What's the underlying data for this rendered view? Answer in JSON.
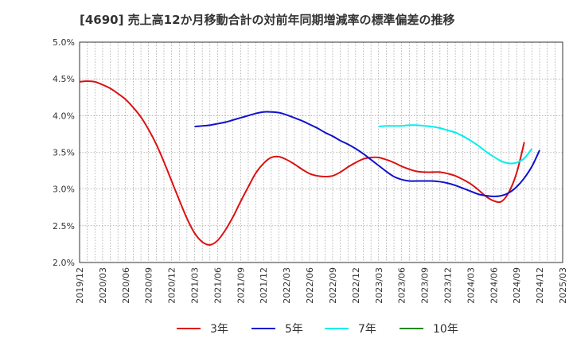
{
  "chart_data": {
    "type": "line",
    "title": "[4690]  売上高12か月移動合計の対前年同期増減率の標準偏差の推移",
    "xlabel": "",
    "ylabel": "",
    "ylim": [
      2.0,
      5.0
    ],
    "yticks": [
      2.0,
      2.5,
      3.0,
      3.5,
      4.0,
      4.5,
      5.0
    ],
    "ytick_labels": [
      "2.0%",
      "2.5%",
      "3.0%",
      "3.5%",
      "4.0%",
      "4.5%",
      "5.0%"
    ],
    "xlim": [
      "2019/12",
      "2025/03"
    ],
    "xtick_labels": [
      "2019/12",
      "2020/03",
      "2020/06",
      "2020/09",
      "2020/12",
      "2021/03",
      "2021/06",
      "2021/09",
      "2021/12",
      "2022/03",
      "2022/06",
      "2022/09",
      "2022/12",
      "2023/03",
      "2023/06",
      "2023/09",
      "2023/12",
      "2024/03",
      "2024/06",
      "2024/09",
      "2024/12",
      "2025/03"
    ],
    "grid": true,
    "legend_position": "bottom",
    "series": [
      {
        "name": "3年",
        "color": "#dd1111",
        "points": [
          [
            "2019/12",
            4.46
          ],
          [
            "2020/01",
            4.47
          ],
          [
            "2020/02",
            4.46
          ],
          [
            "2020/03",
            4.42
          ],
          [
            "2020/04",
            4.37
          ],
          [
            "2020/05",
            4.3
          ],
          [
            "2020/06",
            4.22
          ],
          [
            "2020/07",
            4.11
          ],
          [
            "2020/08",
            3.98
          ],
          [
            "2020/09",
            3.81
          ],
          [
            "2020/10",
            3.61
          ],
          [
            "2020/11",
            3.37
          ],
          [
            "2020/12",
            3.11
          ],
          [
            "2021/01",
            2.85
          ],
          [
            "2021/02",
            2.6
          ],
          [
            "2021/03",
            2.4
          ],
          [
            "2021/04",
            2.28
          ],
          [
            "2021/05",
            2.24
          ],
          [
            "2021/06",
            2.3
          ],
          [
            "2021/07",
            2.44
          ],
          [
            "2021/08",
            2.62
          ],
          [
            "2021/09",
            2.83
          ],
          [
            "2021/10",
            3.03
          ],
          [
            "2021/11",
            3.22
          ],
          [
            "2021/12",
            3.35
          ],
          [
            "2022/01",
            3.43
          ],
          [
            "2022/02",
            3.44
          ],
          [
            "2022/03",
            3.4
          ],
          [
            "2022/04",
            3.34
          ],
          [
            "2022/05",
            3.27
          ],
          [
            "2022/06",
            3.21
          ],
          [
            "2022/07",
            3.18
          ],
          [
            "2022/08",
            3.17
          ],
          [
            "2022/09",
            3.18
          ],
          [
            "2022/10",
            3.23
          ],
          [
            "2022/11",
            3.3
          ],
          [
            "2022/12",
            3.36
          ],
          [
            "2023/01",
            3.41
          ],
          [
            "2023/02",
            3.43
          ],
          [
            "2023/03",
            3.43
          ],
          [
            "2023/04",
            3.4
          ],
          [
            "2023/05",
            3.36
          ],
          [
            "2023/06",
            3.31
          ],
          [
            "2023/07",
            3.27
          ],
          [
            "2023/08",
            3.24
          ],
          [
            "2023/09",
            3.23
          ],
          [
            "2023/10",
            3.23
          ],
          [
            "2023/11",
            3.23
          ],
          [
            "2023/12",
            3.21
          ],
          [
            "2024/01",
            3.18
          ],
          [
            "2024/02",
            3.13
          ],
          [
            "2024/03",
            3.07
          ],
          [
            "2024/04",
            2.99
          ],
          [
            "2024/05",
            2.9
          ],
          [
            "2024/06",
            2.84
          ],
          [
            "2024/07",
            2.83
          ],
          [
            "2024/08",
            2.96
          ],
          [
            "2024/09",
            3.22
          ],
          [
            "2024/10",
            3.64
          ]
        ]
      },
      {
        "name": "5年",
        "color": "#1111cc",
        "points": [
          [
            "2021/03",
            3.85
          ],
          [
            "2021/04",
            3.86
          ],
          [
            "2021/05",
            3.87
          ],
          [
            "2021/06",
            3.89
          ],
          [
            "2021/07",
            3.91
          ],
          [
            "2021/08",
            3.94
          ],
          [
            "2021/09",
            3.97
          ],
          [
            "2021/10",
            4.0
          ],
          [
            "2021/11",
            4.03
          ],
          [
            "2021/12",
            4.05
          ],
          [
            "2022/01",
            4.05
          ],
          [
            "2022/02",
            4.04
          ],
          [
            "2022/03",
            4.01
          ],
          [
            "2022/04",
            3.97
          ],
          [
            "2022/05",
            3.93
          ],
          [
            "2022/06",
            3.88
          ],
          [
            "2022/07",
            3.83
          ],
          [
            "2022/08",
            3.77
          ],
          [
            "2022/09",
            3.72
          ],
          [
            "2022/10",
            3.66
          ],
          [
            "2022/11",
            3.61
          ],
          [
            "2022/12",
            3.55
          ],
          [
            "2023/01",
            3.48
          ],
          [
            "2023/02",
            3.4
          ],
          [
            "2023/03",
            3.32
          ],
          [
            "2023/04",
            3.24
          ],
          [
            "2023/05",
            3.17
          ],
          [
            "2023/06",
            3.13
          ],
          [
            "2023/07",
            3.11
          ],
          [
            "2023/08",
            3.11
          ],
          [
            "2023/09",
            3.11
          ],
          [
            "2023/10",
            3.11
          ],
          [
            "2023/11",
            3.1
          ],
          [
            "2023/12",
            3.08
          ],
          [
            "2024/01",
            3.05
          ],
          [
            "2024/02",
            3.01
          ],
          [
            "2024/03",
            2.97
          ],
          [
            "2024/04",
            2.93
          ],
          [
            "2024/05",
            2.91
          ],
          [
            "2024/06",
            2.9
          ],
          [
            "2024/07",
            2.91
          ],
          [
            "2024/08",
            2.95
          ],
          [
            "2024/09",
            3.03
          ],
          [
            "2024/10",
            3.15
          ],
          [
            "2024/11",
            3.31
          ],
          [
            "2024/12",
            3.53
          ]
        ]
      },
      {
        "name": "7年",
        "color": "#00eeee",
        "points": [
          [
            "2023/03",
            3.85
          ],
          [
            "2023/04",
            3.86
          ],
          [
            "2023/05",
            3.86
          ],
          [
            "2023/06",
            3.86
          ],
          [
            "2023/07",
            3.87
          ],
          [
            "2023/08",
            3.87
          ],
          [
            "2023/09",
            3.86
          ],
          [
            "2023/10",
            3.85
          ],
          [
            "2023/11",
            3.83
          ],
          [
            "2023/12",
            3.8
          ],
          [
            "2024/01",
            3.77
          ],
          [
            "2024/02",
            3.72
          ],
          [
            "2024/03",
            3.66
          ],
          [
            "2024/04",
            3.59
          ],
          [
            "2024/05",
            3.51
          ],
          [
            "2024/06",
            3.44
          ],
          [
            "2024/07",
            3.38
          ],
          [
            "2024/08",
            3.35
          ],
          [
            "2024/09",
            3.36
          ],
          [
            "2024/10",
            3.42
          ],
          [
            "2024/11",
            3.55
          ]
        ]
      },
      {
        "name": "10年",
        "color": "#228822",
        "points": []
      }
    ]
  }
}
